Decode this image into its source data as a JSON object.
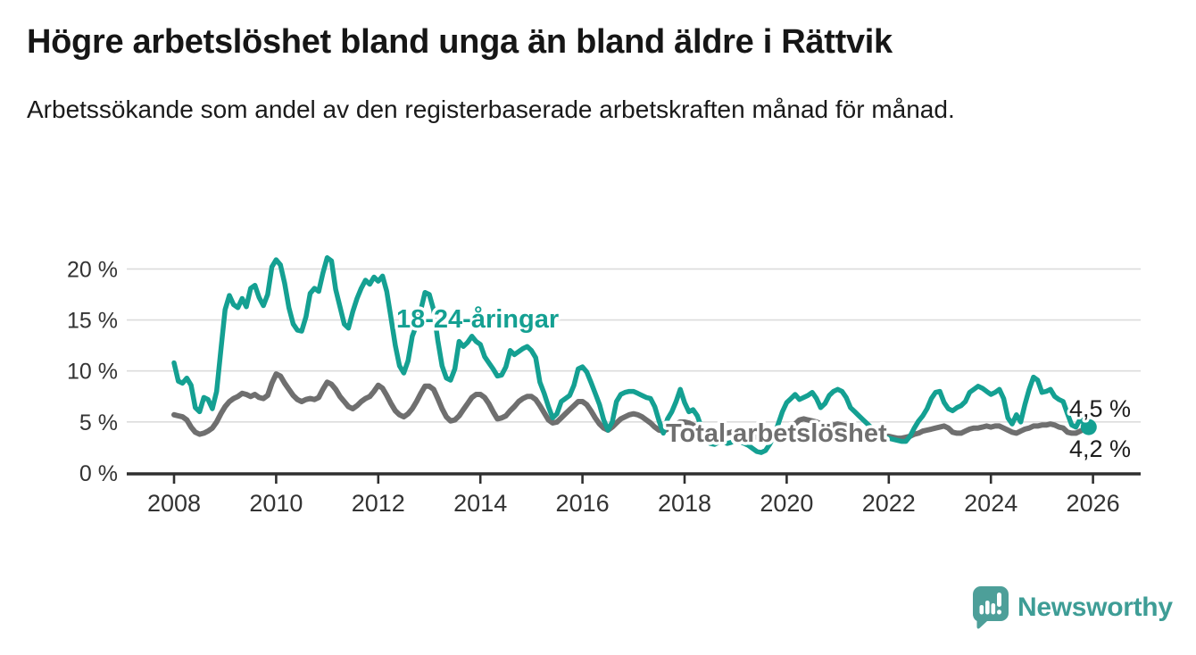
{
  "header": {
    "title": "Högre arbetslöshet bland unga än bland äldre i Rättvik",
    "subtitle": "Arbetssökande som andel av den registerbaserade arbetskraften månad för månad."
  },
  "footer": {
    "brand": "Newsworthy"
  },
  "colors": {
    "youth_line": "#14a092",
    "total_line": "#6f6f6f",
    "grid": "#dcdcdc",
    "axis": "#2f2f2f",
    "tick_label": "#333333",
    "end_label": "#1d1d1d",
    "logo": "#4d9f99"
  },
  "chart_data": {
    "type": "line",
    "title": "Högre arbetslöshet bland unga än bland äldre i Rättvik",
    "subtitle": "Arbetssökande som andel av den registerbaserade arbetskraften månad för månad.",
    "x_start": 2008.0,
    "x_step_months": 1,
    "grid": true,
    "x_axis": {
      "tick_years": [
        2008,
        2010,
        2012,
        2014,
        2016,
        2018,
        2020,
        2022,
        2024,
        2026
      ]
    },
    "y_axis": {
      "unit": "%",
      "range": [
        0,
        22
      ],
      "ticks": [
        {
          "value": 20,
          "label": "20 %"
        },
        {
          "value": 15,
          "label": "15 %"
        },
        {
          "value": 10,
          "label": "10 %"
        },
        {
          "value": 5,
          "label": "5 %"
        },
        {
          "value": 0,
          "label": "0 %"
        }
      ]
    },
    "series": [
      {
        "name": "Total arbetslöshet",
        "color": "#6f6f6f",
        "end_value_label": "4,2 %",
        "values": [
          5.7,
          5.6,
          5.5,
          5.2,
          4.5,
          4.0,
          3.8,
          3.9,
          4.1,
          4.4,
          5.0,
          5.8,
          6.5,
          7.0,
          7.3,
          7.5,
          7.8,
          7.7,
          7.5,
          7.7,
          7.4,
          7.3,
          7.6,
          8.8,
          9.7,
          9.5,
          8.8,
          8.2,
          7.6,
          7.2,
          7.0,
          7.2,
          7.3,
          7.2,
          7.4,
          8.2,
          8.9,
          8.7,
          8.2,
          7.5,
          7.0,
          6.5,
          6.3,
          6.6,
          7.0,
          7.3,
          7.5,
          8.0,
          8.6,
          8.3,
          7.6,
          6.8,
          6.1,
          5.7,
          5.5,
          5.8,
          6.3,
          7.0,
          7.8,
          8.5,
          8.5,
          8.2,
          7.3,
          6.3,
          5.5,
          5.1,
          5.2,
          5.6,
          6.2,
          6.8,
          7.4,
          7.7,
          7.7,
          7.4,
          6.8,
          6.0,
          5.3,
          5.4,
          5.6,
          6.1,
          6.5,
          7.0,
          7.3,
          7.5,
          7.5,
          7.2,
          6.6,
          5.9,
          5.2,
          4.9,
          5.0,
          5.4,
          5.8,
          6.2,
          6.6,
          7.0,
          7.0,
          6.7,
          6.1,
          5.4,
          4.8,
          4.4,
          4.2,
          4.5,
          4.9,
          5.3,
          5.5,
          5.7,
          5.8,
          5.7,
          5.5,
          5.2,
          4.9,
          4.5,
          4.2,
          4.1,
          4.3,
          4.6,
          4.8,
          5.0,
          5.0,
          4.9,
          4.7,
          4.4,
          4.1,
          3.9,
          3.7,
          3.6,
          3.7,
          3.8,
          3.9,
          4.0,
          4.1,
          4.0,
          3.9,
          3.7,
          3.6,
          3.5,
          3.4,
          3.5,
          3.6,
          3.8,
          4.0,
          4.2,
          4.3,
          4.4,
          4.8,
          5.2,
          5.3,
          5.2,
          5.1,
          5.0,
          4.8,
          4.7,
          4.6,
          4.7,
          4.8,
          4.7,
          4.6,
          4.4,
          4.3,
          4.1,
          4.0,
          3.9,
          3.8,
          3.7,
          3.6,
          3.6,
          3.6,
          3.5,
          3.4,
          3.4,
          3.5,
          3.6,
          3.8,
          3.9,
          4.1,
          4.2,
          4.3,
          4.4,
          4.5,
          4.6,
          4.4,
          4.0,
          3.9,
          3.9,
          4.1,
          4.3,
          4.4,
          4.4,
          4.5,
          4.6,
          4.5,
          4.6,
          4.6,
          4.4,
          4.2,
          4.0,
          3.9,
          4.1,
          4.3,
          4.4,
          4.6,
          4.6,
          4.7,
          4.7,
          4.8,
          4.7,
          4.5,
          4.4,
          4.0,
          3.9,
          3.9,
          4.1,
          4.3,
          4.2
        ]
      },
      {
        "name": "18-24-åringar",
        "color": "#14a092",
        "end_value_label": "4,5 %",
        "end_marker": true,
        "values": [
          10.8,
          9.0,
          8.8,
          9.3,
          8.6,
          6.4,
          6.0,
          7.4,
          7.2,
          6.3,
          8.0,
          12.0,
          16.0,
          17.4,
          16.5,
          16.2,
          17.1,
          16.3,
          18.1,
          18.4,
          17.2,
          16.4,
          17.5,
          20.2,
          20.9,
          20.4,
          18.6,
          16.2,
          14.6,
          14.0,
          13.9,
          15.3,
          17.6,
          18.1,
          17.8,
          19.6,
          21.1,
          20.8,
          18.0,
          16.3,
          14.6,
          14.2,
          15.8,
          17.1,
          18.1,
          18.9,
          18.5,
          19.2,
          18.8,
          19.3,
          17.8,
          15.2,
          12.5,
          10.5,
          9.8,
          11.0,
          13.4,
          14.5,
          16.0,
          17.7,
          17.5,
          16.0,
          13.0,
          10.5,
          9.3,
          9.1,
          10.2,
          12.9,
          12.4,
          12.8,
          13.4,
          12.9,
          12.6,
          11.4,
          10.8,
          10.2,
          9.5,
          9.6,
          10.4,
          12.0,
          11.6,
          11.9,
          12.2,
          12.4,
          12.0,
          11.3,
          8.9,
          7.8,
          6.5,
          5.4,
          5.8,
          7.0,
          7.3,
          7.6,
          8.6,
          10.2,
          10.4,
          9.9,
          8.9,
          7.8,
          6.7,
          5.2,
          4.2,
          5.0,
          7.0,
          7.7,
          7.9,
          8.0,
          8.0,
          7.8,
          7.6,
          7.4,
          7.3,
          6.5,
          5.1,
          3.9,
          5.3,
          6.0,
          7.0,
          8.2,
          6.9,
          6.0,
          6.2,
          5.6,
          4.4,
          3.4,
          2.9,
          2.8,
          3.0,
          3.1,
          2.9,
          3.0,
          3.2,
          3.1,
          2.9,
          2.7,
          2.4,
          2.1,
          2.0,
          2.2,
          2.8,
          3.6,
          4.8,
          6.0,
          6.9,
          7.3,
          7.7,
          7.2,
          7.4,
          7.6,
          7.9,
          7.3,
          6.4,
          6.8,
          7.6,
          8.0,
          8.2,
          8.0,
          7.4,
          6.4,
          6.0,
          5.6,
          5.2,
          4.8,
          4.4,
          4.0,
          3.7,
          3.5,
          3.4,
          3.3,
          3.2,
          3.1,
          3.1,
          3.6,
          4.4,
          5.1,
          5.6,
          6.3,
          7.3,
          7.9,
          8.0,
          6.9,
          6.3,
          6.1,
          6.4,
          6.6,
          7.0,
          7.9,
          8.2,
          8.5,
          8.3,
          8.0,
          7.7,
          7.9,
          8.2,
          7.3,
          5.4,
          4.8,
          5.7,
          5.0,
          6.7,
          8.2,
          9.4,
          9.1,
          7.9,
          8.0,
          8.2,
          7.5,
          7.2,
          7.0,
          5.8,
          4.7,
          4.5,
          5.3,
          4.8,
          4.5
        ]
      }
    ],
    "annotations": {
      "youth_series_label": "18-24-åringar",
      "total_series_label": "Total arbetslöshet",
      "youth_end_label": "4,5 %",
      "total_end_label": "4,2 %"
    },
    "legend_position": "inline-labels"
  }
}
